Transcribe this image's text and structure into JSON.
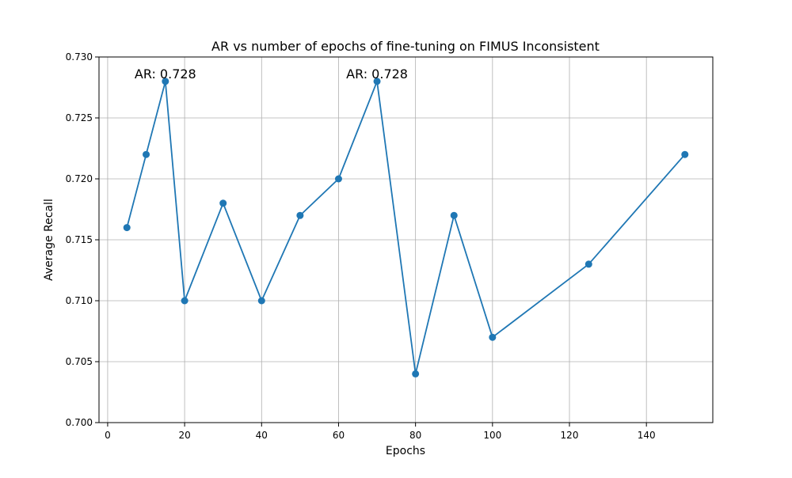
{
  "chart_data": {
    "type": "line",
    "title": "AR vs number of epochs of fine-tuning on FIMUS Inconsistent",
    "xlabel": "Epochs",
    "ylabel": "Average Recall",
    "x": [
      5,
      10,
      15,
      20,
      30,
      40,
      50,
      60,
      70,
      80,
      90,
      100,
      125,
      150
    ],
    "series": [
      {
        "values": [
          0.716,
          0.722,
          0.728,
          0.71,
          0.718,
          0.71,
          0.717,
          0.72,
          0.728,
          0.704,
          0.717,
          0.707,
          0.713,
          0.722
        ],
        "color": "#1f77b4",
        "marker": "circle"
      }
    ],
    "xlim": [
      -2.25,
      157.25
    ],
    "ylim": [
      0.7,
      0.73
    ],
    "xticks": [
      0,
      20,
      40,
      60,
      80,
      100,
      120,
      140
    ],
    "xtick_labels": [
      "0",
      "20",
      "40",
      "60",
      "80",
      "100",
      "120",
      "140"
    ],
    "yticks": [
      0.7,
      0.705,
      0.71,
      0.715,
      0.72,
      0.725,
      0.73
    ],
    "ytick_labels": [
      "0.700",
      "0.705",
      "0.710",
      "0.715",
      "0.720",
      "0.725",
      "0.730"
    ],
    "grid": true,
    "annotations": [
      {
        "text": "AR: 0.728",
        "x": 15,
        "y": 0.728
      },
      {
        "text": "AR: 0.728",
        "x": 70,
        "y": 0.728
      }
    ]
  }
}
